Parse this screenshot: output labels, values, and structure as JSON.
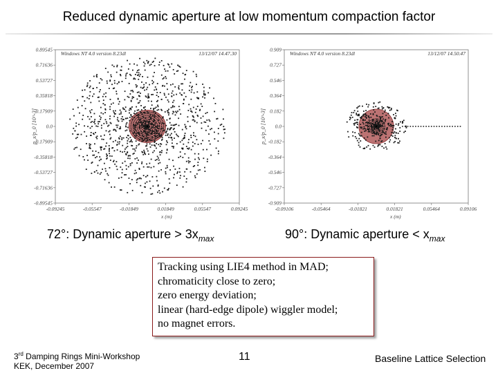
{
  "slide": {
    "title": "Reduced dynamic aperture at low momentum compaction factor",
    "page_number": "11",
    "footer_right": "Baseline Lattice Selection",
    "footer_left": {
      "line1_number": "3",
      "line1_sup": "rd",
      "line1_rest": " Damping Rings Mini-Workshop",
      "line2": "KEK, December 2007"
    }
  },
  "captions": {
    "left": {
      "prefix": "72°: Dynamic aperture > 3x",
      "sub": "max"
    },
    "right": {
      "prefix": "90°: Dynamic aperture < x",
      "sub": "max"
    }
  },
  "notes": [
    "Tracking using LIE4 method in MAD;",
    "chromaticity close to zero;",
    "zero energy deviation;",
    "linear (hard-edge dipole) wiggler model;",
    "no magnet errors."
  ],
  "colors": {
    "aperture_fill": "#b05a5a",
    "aperture_stroke": "#8a3030",
    "title_rule": "#9a9a9a",
    "notes_border": "#8a1a1a"
  },
  "chart_data": [
    {
      "type": "scatter",
      "header_left": "Windows NT 4.0 version 8.23dl",
      "header_right": "13/12/07  14.47.30",
      "ylabel": "p_x/p_0  [10^-3]",
      "xlabel": "x (m)",
      "xlim": [
        -0.09245,
        0.09245
      ],
      "ylim": [
        -0.89545,
        0.89545
      ],
      "xticks": [
        "-0.09245",
        "-0.05547",
        "-0.01849",
        "0.01849",
        "0.05547",
        "0.09245"
      ],
      "yticks": [
        "0.89545",
        "0.71636",
        "0.53727",
        "0.35818",
        "0.17909",
        "0.0",
        "-0.17909",
        "-0.35818",
        "-0.53727",
        "-0.71636",
        "-0.89545"
      ],
      "particles": {
        "count": 1200,
        "extent_x": 0.079,
        "extent_y": 0.8,
        "exponent": 0.9,
        "tail_x": null,
        "tail_y": null
      },
      "aperture_region": {
        "rx": 0.0185,
        "ry": 0.19
      },
      "core_rings": {
        "count": 8,
        "rx": 0.0165,
        "ry": 0.17
      }
    },
    {
      "type": "scatter",
      "header_left": "Windows NT 4.0 version 8.23dl",
      "header_right": "13/12/07  14.50.47",
      "ylabel": "p_x/p_0  [10^-3]",
      "xlabel": "x (m)",
      "xlim": [
        -0.09106,
        0.09106
      ],
      "ylim": [
        -0.909,
        0.909
      ],
      "xticks": [
        "-0.09106",
        "-0.05464",
        "-0.01821",
        "0.01821",
        "0.05464",
        "0.09106"
      ],
      "yticks": [
        "0.909",
        "0.727",
        "0.546",
        "0.364",
        "0.182",
        "0.0",
        "-0.182",
        "-0.364",
        "-0.546",
        "-0.727",
        "-0.909"
      ],
      "particles": {
        "count": 420,
        "extent_x": 0.03,
        "extent_y": 0.3,
        "exponent": 1.3,
        "tail_x": [
          0.026,
          0.085
        ],
        "tail_y": 0.0
      },
      "aperture_region": {
        "rx": 0.0172,
        "ry": 0.205
      },
      "core_rings": {
        "count": 5,
        "rx": 0.0085,
        "ry": 0.09
      }
    }
  ]
}
